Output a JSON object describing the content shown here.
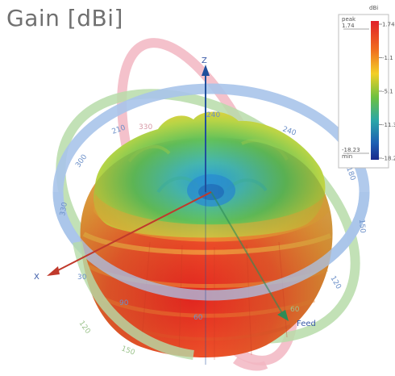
{
  "title": "Gain [dBi]",
  "chart_data": {
    "type": "3d-radiation-pattern",
    "title": "Gain [dBi]",
    "quantity": "Gain",
    "unit": "dBi",
    "axes": {
      "x": "X",
      "z": "Z",
      "y": "Feed"
    },
    "colorbar": {
      "header": "dBi",
      "peak_label": "peak",
      "min_label": "min",
      "max": 1.74,
      "min": -18.2,
      "max_text": "1.74",
      "min_text": "-18.2",
      "peak_value_text": "1.74",
      "min_value_text": "-18.23",
      "ticks": [
        "1.74",
        "-1.1",
        "-5.1",
        "-11.3",
        "-18.2"
      ],
      "colors": [
        "#e0202a",
        "#f06a1e",
        "#f3cf26",
        "#6dc140",
        "#2aa6a8",
        "#1d5fb3",
        "#1a2a8c"
      ]
    },
    "rings": [
      {
        "name": "azimuth",
        "color": "#a9c4ea",
        "labels": [
          "210",
          "240",
          "300",
          "330",
          "30",
          "60",
          "90",
          "120",
          "150",
          "180"
        ]
      },
      {
        "name": "elevation-xz",
        "color": "#f2b6c2",
        "labels": [
          "240",
          "330",
          "20",
          "30"
        ]
      },
      {
        "name": "elevation-yz",
        "color": "#b7dca9",
        "labels": [
          "270",
          "120",
          "60",
          "150"
        ]
      }
    ]
  }
}
